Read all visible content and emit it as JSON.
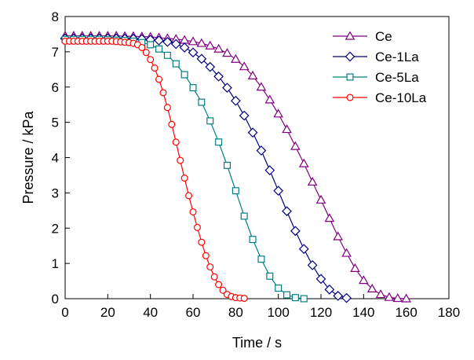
{
  "chart_data": {
    "type": "line",
    "xlabel": "Time / s",
    "ylabel": "Pressure / kPa",
    "xlim": [
      0,
      180
    ],
    "ylim": [
      0,
      8
    ],
    "xticks": [
      "0",
      "20",
      "40",
      "60",
      "80",
      "100",
      "120",
      "140",
      "160",
      "180"
    ],
    "yticks": [
      "0",
      "1",
      "2",
      "3",
      "4",
      "5",
      "6",
      "7",
      "8"
    ],
    "grid": false,
    "legend_position": "top-right",
    "series": [
      {
        "name": "Ce",
        "color": "#800080",
        "marker": "triangle",
        "x": [
          0,
          4,
          8,
          12,
          16,
          20,
          24,
          28,
          32,
          36,
          40,
          44,
          48,
          52,
          56,
          60,
          64,
          68,
          72,
          76,
          80,
          84,
          88,
          92,
          96,
          100,
          104,
          108,
          112,
          116,
          120,
          124,
          128,
          132,
          136,
          140,
          144,
          148,
          152,
          156,
          160
        ],
        "y": [
          7.45,
          7.45,
          7.45,
          7.45,
          7.45,
          7.45,
          7.45,
          7.44,
          7.44,
          7.43,
          7.42,
          7.4,
          7.38,
          7.36,
          7.33,
          7.29,
          7.24,
          7.17,
          7.08,
          6.96,
          6.79,
          6.58,
          6.32,
          6.0,
          5.64,
          5.24,
          4.8,
          4.32,
          3.83,
          3.31,
          2.8,
          2.28,
          1.76,
          1.29,
          0.86,
          0.52,
          0.28,
          0.12,
          0.04,
          0.01,
          0.0
        ]
      },
      {
        "name": "Ce-1La",
        "color": "#000080",
        "marker": "diamond",
        "x": [
          0,
          4,
          8,
          12,
          16,
          20,
          24,
          28,
          32,
          36,
          40,
          44,
          48,
          52,
          56,
          60,
          64,
          68,
          72,
          76,
          80,
          84,
          88,
          92,
          96,
          100,
          104,
          108,
          112,
          116,
          120,
          124,
          128,
          132
        ],
        "y": [
          7.38,
          7.38,
          7.38,
          7.38,
          7.38,
          7.38,
          7.38,
          7.37,
          7.37,
          7.36,
          7.34,
          7.32,
          7.28,
          7.22,
          7.12,
          6.98,
          6.8,
          6.57,
          6.3,
          5.98,
          5.61,
          5.19,
          4.71,
          4.2,
          3.64,
          3.06,
          2.48,
          1.92,
          1.41,
          0.95,
          0.56,
          0.26,
          0.08,
          0.02
        ]
      },
      {
        "name": "Ce-5La",
        "color": "#008080",
        "marker": "square",
        "x": [
          0,
          4,
          8,
          12,
          16,
          20,
          24,
          28,
          32,
          36,
          40,
          44,
          48,
          52,
          56,
          60,
          64,
          68,
          72,
          76,
          80,
          84,
          88,
          92,
          96,
          100,
          104,
          108,
          112
        ],
        "y": [
          7.35,
          7.35,
          7.35,
          7.35,
          7.35,
          7.34,
          7.33,
          7.32,
          7.3,
          7.26,
          7.2,
          7.08,
          6.9,
          6.66,
          6.35,
          5.98,
          5.57,
          5.04,
          4.44,
          3.78,
          3.06,
          2.34,
          1.68,
          1.12,
          0.64,
          0.3,
          0.11,
          0.03,
          0.0
        ]
      },
      {
        "name": "Ce-10La",
        "color": "#ff0000",
        "marker": "circle",
        "x": [
          0,
          2,
          4,
          6,
          8,
          10,
          12,
          14,
          16,
          18,
          20,
          22,
          24,
          26,
          28,
          30,
          32,
          34,
          36,
          38,
          40,
          42,
          44,
          46,
          48,
          50,
          52,
          54,
          56,
          58,
          60,
          62,
          64,
          66,
          68,
          70,
          72,
          74,
          76,
          78,
          80,
          82,
          84
        ],
        "y": [
          7.3,
          7.3,
          7.3,
          7.3,
          7.3,
          7.3,
          7.3,
          7.3,
          7.3,
          7.3,
          7.3,
          7.3,
          7.29,
          7.28,
          7.27,
          7.26,
          7.24,
          7.2,
          7.12,
          6.98,
          6.78,
          6.54,
          6.22,
          5.84,
          5.42,
          4.94,
          4.44,
          3.92,
          3.42,
          2.92,
          2.46,
          2.02,
          1.6,
          1.22,
          0.9,
          0.62,
          0.4,
          0.24,
          0.12,
          0.06,
          0.03,
          0.02,
          0.01
        ]
      }
    ]
  }
}
